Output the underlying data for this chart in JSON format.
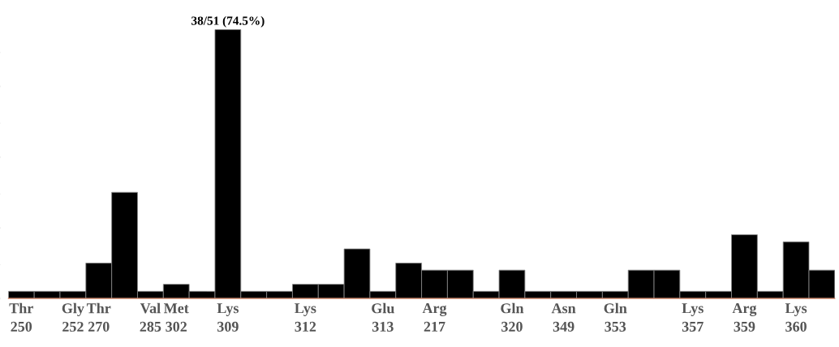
{
  "chart_data": {
    "type": "bar",
    "categories": [
      "Thr\n250",
      null,
      "Gly\n252",
      "Thr\n270",
      null,
      "Val\n285",
      "Met\n302",
      null,
      "Lys\n309",
      null,
      null,
      "Lys\n312",
      null,
      null,
      "Glu\n313",
      null,
      "Arg\n217",
      null,
      null,
      "Gln\n320",
      null,
      "Asn\n349",
      null,
      "Gln\n353",
      null,
      null,
      "Lys\n357",
      null,
      "Arg\n359",
      null,
      "Lys\n360",
      null
    ],
    "values": [
      1,
      1,
      1,
      5,
      15,
      1,
      2,
      1,
      38,
      1,
      1,
      2,
      2,
      7,
      1,
      5,
      4,
      4,
      1,
      4,
      1,
      1,
      1,
      1,
      4,
      4,
      1,
      1,
      9,
      1,
      8,
      4
    ],
    "color": "#000000",
    "value_labels": [
      null,
      null,
      null,
      null,
      null,
      null,
      null,
      null,
      "38/51 (74.5%)",
      null,
      null,
      null,
      null,
      null,
      null,
      null,
      null,
      null,
      null,
      null,
      null,
      null,
      null,
      null,
      null,
      null,
      null,
      null,
      null,
      null,
      null,
      null
    ],
    "grid": false,
    "legend": false
  }
}
